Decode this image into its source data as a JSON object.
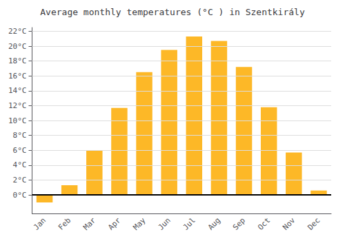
{
  "chart_data": {
    "type": "bar",
    "title": "Average monthly temperatures (°C ) in Szentkirály",
    "categories": [
      "Jan",
      "Feb",
      "Mar",
      "Apr",
      "May",
      "Jun",
      "Jul",
      "Aug",
      "Sep",
      "Oct",
      "Nov",
      "Dec"
    ],
    "values": [
      -1.0,
      1.3,
      6.0,
      11.7,
      16.5,
      19.5,
      21.3,
      20.7,
      17.2,
      11.8,
      5.7,
      0.6
    ],
    "color": "#FDB827",
    "ylim": [
      -2.5,
      22.5
    ],
    "yticks": [
      {
        "value": 0,
        "label": "0°C"
      },
      {
        "value": 2,
        "label": "2°C"
      },
      {
        "value": 4,
        "label": "4°C"
      },
      {
        "value": 6,
        "label": "6°C"
      },
      {
        "value": 8,
        "label": "8°C"
      },
      {
        "value": 10,
        "label": "10°C"
      },
      {
        "value": 12,
        "label": "12°C"
      },
      {
        "value": 14,
        "label": "14°C"
      },
      {
        "value": 16,
        "label": "16°C"
      },
      {
        "value": 18,
        "label": "18°C"
      },
      {
        "value": 20,
        "label": "20°C"
      },
      {
        "value": 22,
        "label": "22°C"
      }
    ],
    "grid": true
  }
}
